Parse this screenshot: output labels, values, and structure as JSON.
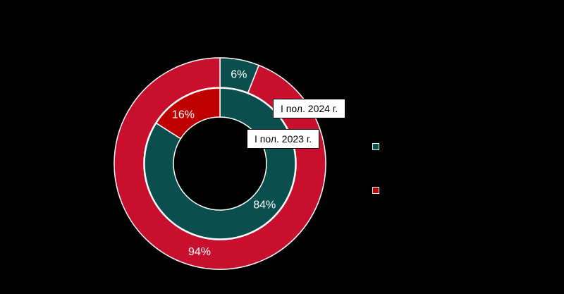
{
  "chart_data": {
    "type": "doughnut",
    "rings": [
      {
        "name": "I пол. 2024 г.",
        "values": [
          6,
          94
        ],
        "labels": [
          "6%",
          "94%"
        ],
        "colors": [
          "#0a4f4e",
          "#c8102e"
        ]
      },
      {
        "name": "I пол. 2023 г.",
        "values": [
          84,
          16
        ],
        "labels": [
          "84%",
          "16%"
        ],
        "colors": [
          "#0a4f4e",
          "#c00000"
        ]
      }
    ],
    "legend": {
      "position": "right",
      "entries": [
        {
          "color": "#0a4f4e"
        },
        {
          "color": "#c00000"
        }
      ]
    },
    "background": "#000000"
  }
}
